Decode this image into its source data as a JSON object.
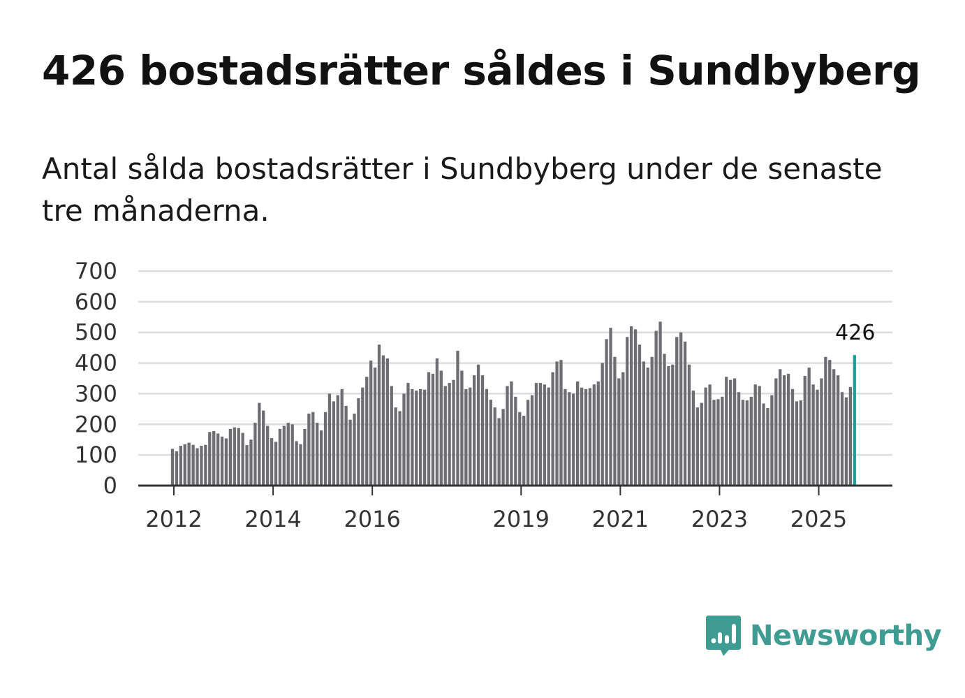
{
  "title": "426 bostadsrätter såldes i Sundbyberg",
  "subtitle": "Antal sålda bostadsrätter i Sundbyberg under de senaste tre månaderna.",
  "logo": {
    "text": "Newsworthy",
    "icon": "newsworthy-logo-icon"
  },
  "colors": {
    "bar": "#6e6d72",
    "highlight": "#1a9e96",
    "grid": "#dddddd",
    "axis": "#333333",
    "brand": "#3f9c93"
  },
  "chart_data": {
    "type": "bar",
    "title": "426 bostadsrätter såldes i Sundbyberg",
    "xlabel": "",
    "ylabel": "",
    "ylim": [
      0,
      700
    ],
    "yticks": [
      0,
      100,
      200,
      300,
      400,
      500,
      600,
      700
    ],
    "ytick_labels": [
      "0",
      "100",
      "200",
      "300",
      "400",
      "500",
      "600",
      "700"
    ],
    "xtick_labels": [
      {
        "label": "2012",
        "index": 0
      },
      {
        "label": "2014",
        "index": 24
      },
      {
        "label": "2016",
        "index": 48
      },
      {
        "label": "2019",
        "index": 84
      },
      {
        "label": "2021",
        "index": 108
      },
      {
        "label": "2023",
        "index": 132
      },
      {
        "label": "2025",
        "index": 156
      }
    ],
    "grid": true,
    "annotation": {
      "text": "426",
      "index": 165
    },
    "highlight_index": 165,
    "values": [
      120,
      112,
      130,
      135,
      140,
      133,
      122,
      130,
      133,
      175,
      178,
      170,
      160,
      154,
      185,
      190,
      188,
      172,
      132,
      150,
      205,
      270,
      245,
      195,
      155,
      143,
      185,
      195,
      205,
      200,
      145,
      135,
      185,
      235,
      240,
      205,
      180,
      240,
      300,
      275,
      295,
      315,
      260,
      215,
      235,
      285,
      320,
      355,
      408,
      385,
      460,
      425,
      415,
      325,
      255,
      243,
      300,
      335,
      315,
      310,
      315,
      313,
      370,
      365,
      415,
      375,
      325,
      335,
      345,
      440,
      375,
      315,
      320,
      360,
      395,
      360,
      315,
      280,
      255,
      220,
      250,
      325,
      340,
      290,
      240,
      228,
      280,
      295,
      335,
      335,
      330,
      320,
      370,
      405,
      410,
      315,
      305,
      300,
      340,
      320,
      315,
      318,
      330,
      340,
      400,
      478,
      515,
      420,
      350,
      370,
      485,
      520,
      510,
      460,
      405,
      385,
      420,
      505,
      535,
      430,
      390,
      395,
      485,
      500,
      470,
      395,
      310,
      255,
      270,
      320,
      330,
      280,
      282,
      290,
      355,
      345,
      350,
      305,
      280,
      278,
      290,
      330,
      325,
      268,
      253,
      295,
      350,
      380,
      360,
      365,
      315,
      275,
      278,
      358,
      385,
      330,
      313,
      350,
      420,
      410,
      380,
      360,
      305,
      288,
      322,
      426
    ]
  }
}
